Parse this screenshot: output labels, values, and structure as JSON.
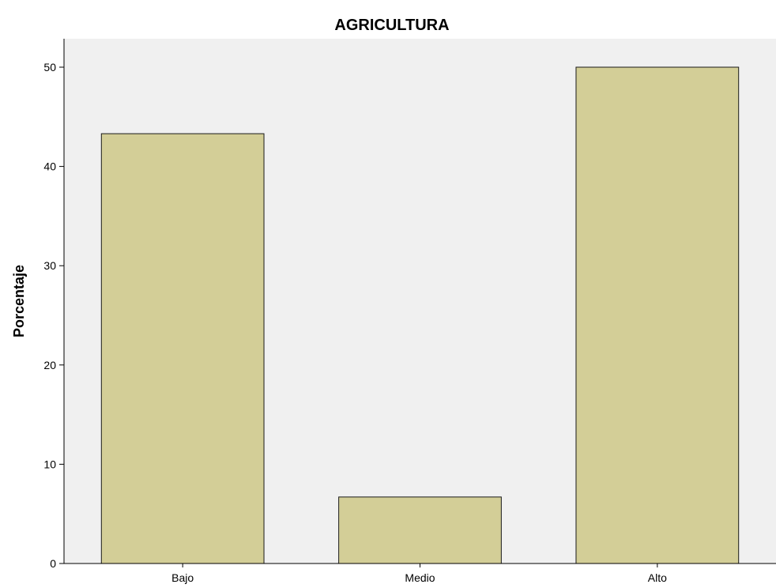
{
  "chart_data": {
    "type": "bar",
    "title": "AGRICULTURA",
    "xlabel": "",
    "ylabel": "Porcentaje",
    "categories": [
      "Bajo",
      "Medio",
      "Alto"
    ],
    "values": [
      43.3,
      6.7,
      50.0
    ],
    "ylim": [
      0,
      50
    ],
    "yticks": [
      0,
      10,
      20,
      30,
      40,
      50
    ],
    "grid": false,
    "legend": "none",
    "colors": {
      "bar_fill": "#d3ce97",
      "bar_stroke": "#1a1a1a",
      "plot_background": "#f0f0f0"
    }
  }
}
